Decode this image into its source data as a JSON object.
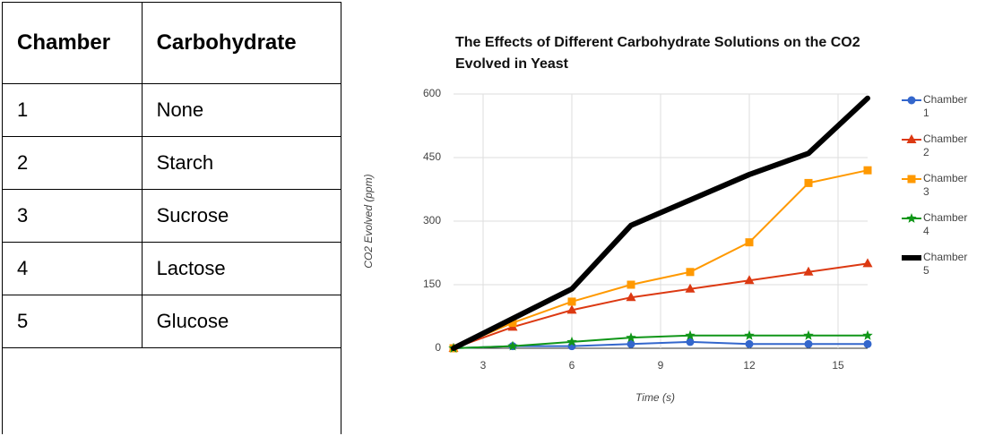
{
  "table": {
    "header": [
      "Chamber",
      "Carbohydrate"
    ],
    "rows": [
      [
        "1",
        "None"
      ],
      [
        "2",
        "Starch"
      ],
      [
        "3",
        "Sucrose"
      ],
      [
        "4",
        "Lactose"
      ],
      [
        "5",
        "Glucose"
      ]
    ]
  },
  "chart_data": {
    "type": "line",
    "title": "The Effects of Different Carbohydrate Solutions on the CO2 Evolved in Yeast",
    "x_label": "Time (s)",
    "y_label": "CO2 Evolved (ppm)",
    "x": [
      2,
      4,
      6,
      8,
      10,
      12,
      14,
      16
    ],
    "xlim": [
      2,
      16
    ],
    "xticks": [
      3,
      6,
      9,
      12,
      15
    ],
    "ylim": [
      0,
      600
    ],
    "yticks": [
      0,
      150,
      300,
      450,
      600
    ],
    "grid": true,
    "legend": "right",
    "series": [
      {
        "name": "Chamber 1",
        "color": "#3366cc",
        "marker": "circle",
        "values": [
          0,
          5,
          5,
          10,
          15,
          10,
          10,
          10
        ]
      },
      {
        "name": "Chamber 2",
        "color": "#dc3912",
        "marker": "triangle",
        "values": [
          0,
          50,
          90,
          120,
          140,
          160,
          180,
          200
        ]
      },
      {
        "name": "Chamber 3",
        "color": "#ff9900",
        "marker": "square",
        "values": [
          0,
          60,
          110,
          150,
          180,
          250,
          390,
          420
        ]
      },
      {
        "name": "Chamber 4",
        "color": "#109618",
        "marker": "star",
        "values": [
          0,
          5,
          15,
          25,
          30,
          30,
          30,
          30
        ]
      },
      {
        "name": "Chamber 5",
        "color": "#000000",
        "marker": "none",
        "values": [
          0,
          70,
          140,
          290,
          350,
          410,
          460,
          590
        ]
      }
    ]
  }
}
